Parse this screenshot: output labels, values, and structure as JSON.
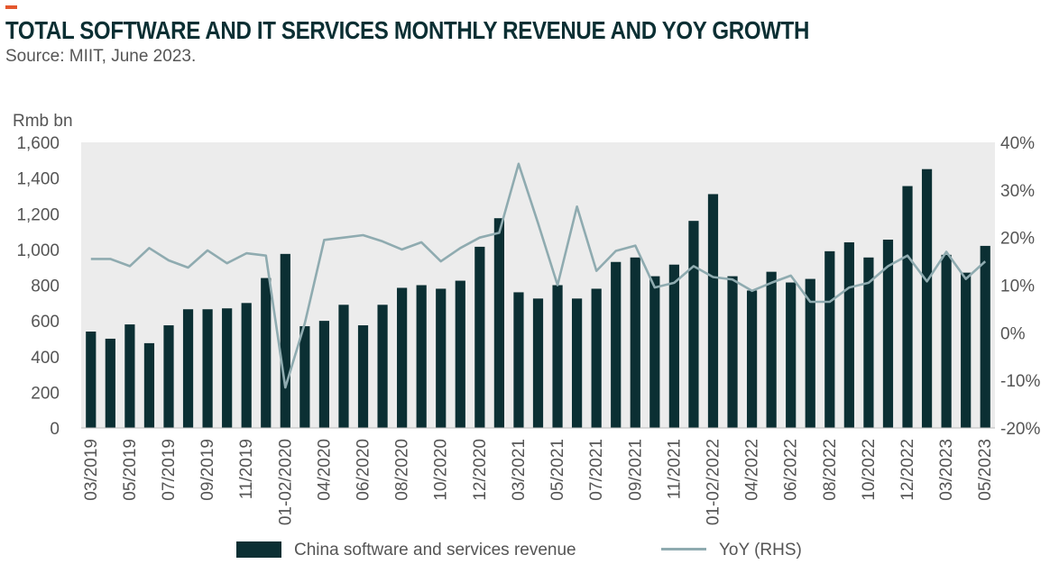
{
  "header": {
    "title": "TOTAL SOFTWARE AND IT SERVICES MONTHLY REVENUE AND YOY GROWTH",
    "subtitle": "Source: MIIT, June 2023."
  },
  "colors": {
    "accent": "#e4572e",
    "bar": "#0b2f33",
    "line": "#8fabb0",
    "plot_bg": "#ececec"
  },
  "chart_data": {
    "type": "bar",
    "title": "TOTAL SOFTWARE AND IT SERVICES MONTHLY REVENUE AND YOY GROWTH",
    "ylabel": "Rmb bn",
    "ylim": [
      0,
      1600
    ],
    "y2lim": [
      -20,
      40
    ],
    "yticks": [
      "0",
      "200",
      "400",
      "600",
      "800",
      "1,000",
      "1,200",
      "1,400",
      "1,600"
    ],
    "y2ticks": [
      "-20%",
      "-10%",
      "0%",
      "10%",
      "20%",
      "30%",
      "40%"
    ],
    "categories": [
      "03/2019",
      "04/2019",
      "05/2019",
      "06/2019",
      "07/2019",
      "08/2019",
      "09/2019",
      "10/2019",
      "11/2019",
      "12/2019",
      "01-02/2020",
      "03/2020",
      "04/2020",
      "05/2020",
      "06/2020",
      "07/2020",
      "08/2020",
      "09/2020",
      "10/2020",
      "11/2020",
      "12/2020",
      "01-02/2021",
      "03/2021",
      "04/2021",
      "05/2021",
      "06/2021",
      "07/2021",
      "08/2021",
      "09/2021",
      "10/2021",
      "11/2021",
      "12/2021",
      "01-02/2022",
      "03/2022",
      "04/2022",
      "05/2022",
      "06/2022",
      "07/2022",
      "08/2022",
      "09/2022",
      "10/2022",
      "11/2022",
      "12/2022",
      "01-02/2023",
      "03/2023",
      "04/2023",
      "05/2023"
    ],
    "xtick_labels": [
      "03/2019",
      "05/2019",
      "07/2019",
      "09/2019",
      "11/2019",
      "01-02/2020",
      "04/2020",
      "06/2020",
      "08/2020",
      "10/2020",
      "12/2020",
      "03/2021",
      "05/2021",
      "07/2021",
      "09/2021",
      "11/2021",
      "01-02/2022",
      "04/2022",
      "06/2022",
      "08/2022",
      "10/2022",
      "12/2022",
      "03/2023",
      "05/2023"
    ],
    "series": [
      {
        "name": "China software and services revenue",
        "type": "bar",
        "axis": "left",
        "values": [
          540,
          500,
          580,
          475,
          575,
          665,
          665,
          670,
          700,
          840,
          975,
          570,
          600,
          690,
          575,
          690,
          785,
          800,
          780,
          825,
          1015,
          1175,
          760,
          725,
          800,
          725,
          780,
          930,
          955,
          850,
          915,
          1160,
          1310,
          850,
          770,
          875,
          815,
          835,
          990,
          1040,
          955,
          1055,
          1355,
          1450,
          970,
          870,
          1020
        ]
      },
      {
        "name": "YoY (RHS)",
        "type": "line",
        "axis": "right",
        "values": [
          15.5,
          15.5,
          14,
          17.8,
          15.2,
          13.7,
          17.3,
          14.6,
          16.7,
          16.2,
          -11.5,
          2,
          19.5,
          20,
          20.5,
          19.2,
          17.5,
          19,
          15,
          17.8,
          20,
          21,
          35.5,
          23,
          10,
          26.5,
          13,
          17.2,
          18.3,
          9.5,
          10.5,
          14,
          11.7,
          11.2,
          8.8,
          10.5,
          12,
          6.5,
          6.5,
          9.5,
          10.5,
          14,
          16.2,
          10.8,
          17,
          11.3,
          15
        ]
      }
    ],
    "legend_position": "bottom",
    "grid": false
  }
}
